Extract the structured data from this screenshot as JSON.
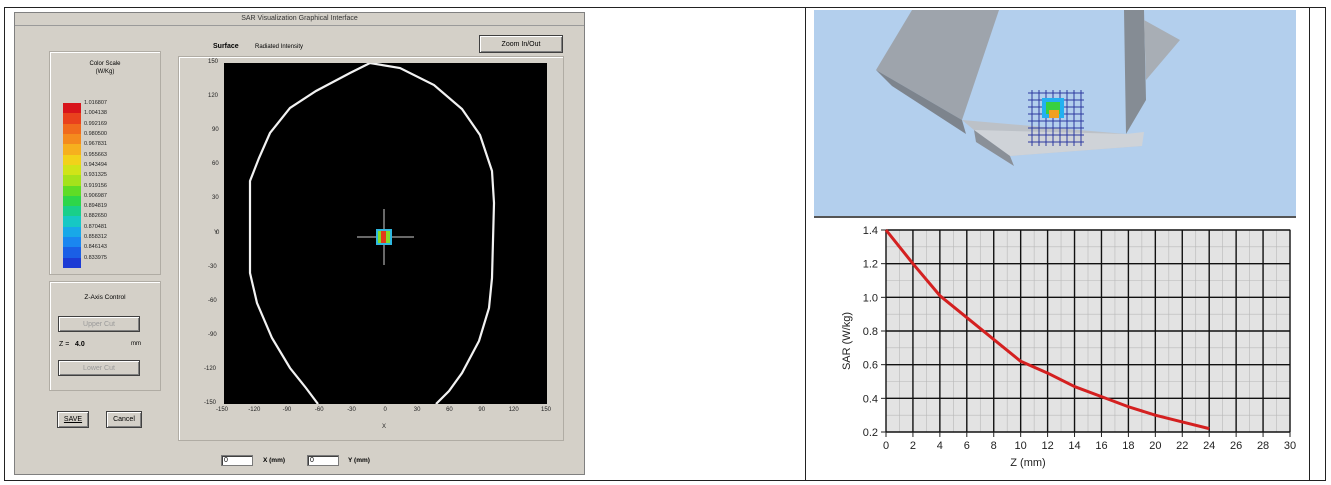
{
  "app": {
    "title": "SAR Visualization Graphical Interface",
    "zoom_button": "Zoom In/Out",
    "surface_label": "Surface",
    "surface_value": "Radiated Intensity"
  },
  "color_scale": {
    "title_line1": "Color Scale",
    "title_line2": "(W/Kg)",
    "values": [
      "1.016807",
      "1.004138",
      "0.992169",
      "0.980500",
      "0.967831",
      "0.955663",
      "0.943494",
      "0.931325",
      "0.919156",
      "0.906987",
      "0.894819",
      "0.882650",
      "0.870481",
      "0.858312",
      "0.846143",
      "0.833975"
    ],
    "colors": [
      "#d8141b",
      "#e9411d",
      "#f06a1d",
      "#f48b1e",
      "#f6b01e",
      "#f2d21a",
      "#d0e418",
      "#a5e21b",
      "#5fdc26",
      "#2dd64a",
      "#19cf8a",
      "#16c8c4",
      "#18a8e8",
      "#1a86f0",
      "#1a5fe6",
      "#1c3bd4"
    ]
  },
  "z_axis_control": {
    "title": "Z-Axis Control",
    "upper_button": "Upper Cut",
    "z_prefix": "Z =",
    "z_value": "4.0",
    "z_unit": "mm",
    "lower_button": "Lower Cut"
  },
  "actions": {
    "save": "SAVE",
    "cancel": "Cancel"
  },
  "plot": {
    "y_ticks": [
      "150",
      "120",
      "90",
      "60",
      "30",
      "0",
      "-30",
      "-60",
      "-90",
      "-120",
      "-150"
    ],
    "x_ticks": [
      "-150",
      "-120",
      "-90",
      "-60",
      "-30",
      "0",
      "30",
      "60",
      "90",
      "120",
      "150"
    ],
    "x_axis": "X",
    "y_axis": "Y"
  },
  "coords": {
    "x_value": "0",
    "x_label": "X (mm)",
    "y_value": "0",
    "y_label": "Y (mm)"
  },
  "chart_data": {
    "type": "line",
    "xlabel": "Z (mm)",
    "ylabel": "SAR (W/kg)",
    "xlim": [
      0,
      30
    ],
    "ylim": [
      0.2,
      1.4
    ],
    "x_ticks": [
      0,
      2,
      4,
      6,
      8,
      10,
      12,
      14,
      16,
      18,
      20,
      22,
      24,
      26,
      28,
      30
    ],
    "y_ticks": [
      "1.4",
      "1.2",
      "1.0",
      "0.8",
      "0.6",
      "0.4",
      "0.2"
    ],
    "grid": true,
    "series": [
      {
        "color": "#d42020",
        "x": [
          0,
          2,
          4,
          6,
          8,
          10,
          12,
          14,
          16,
          18,
          20,
          22,
          24
        ],
        "y": [
          1.4,
          1.2,
          1.01,
          0.88,
          0.75,
          0.62,
          0.55,
          0.47,
          0.41,
          0.35,
          0.3,
          0.26,
          0.22
        ]
      }
    ]
  }
}
